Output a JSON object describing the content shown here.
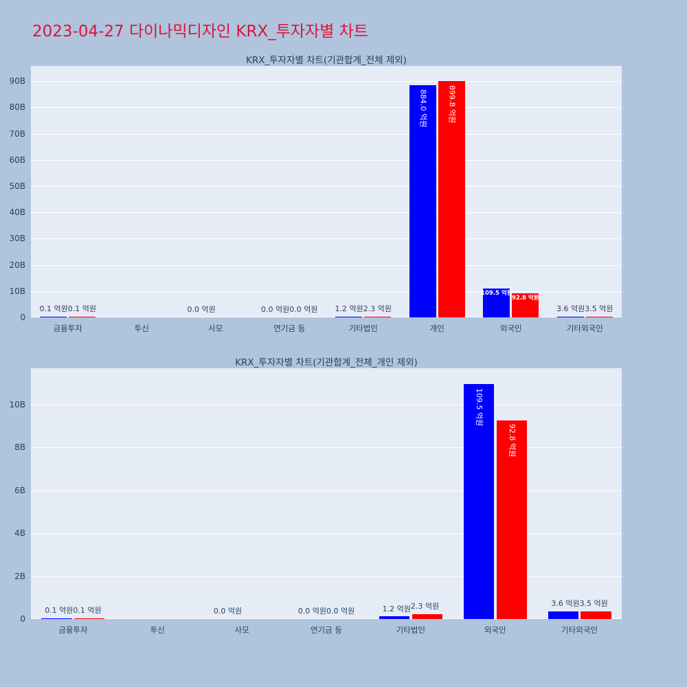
{
  "page_title": "2023-04-27 다이나믹디자인 KRX_투자자별 차트",
  "colors": {
    "page_background": "#b0c4de",
    "plot_background": "#e5ecf6",
    "title": "#dc143c",
    "text": "#2a3f5f",
    "grid": "#ffffff",
    "series_blue": "#0000ff",
    "series_red": "#ff0000"
  },
  "chart_data": [
    {
      "type": "bar",
      "title": "KRX_투자자별 차트(기관합계_전체 제외)",
      "xlabel": "",
      "ylabel": "",
      "legend_position": "none",
      "grid": "horizontal-white",
      "categories": [
        "금융투자",
        "투신",
        "사모",
        "연기금 등",
        "기타법인",
        "개인",
        "외국인",
        "기타외국인"
      ],
      "ymax_b": 95.8,
      "yticks": [
        {
          "value": 0,
          "label": "0"
        },
        {
          "value": 10,
          "label": "10B"
        },
        {
          "value": 20,
          "label": "20B"
        },
        {
          "value": 30,
          "label": "30B"
        },
        {
          "value": 40,
          "label": "40B"
        },
        {
          "value": 50,
          "label": "50B"
        },
        {
          "value": 60,
          "label": "60B"
        },
        {
          "value": 70,
          "label": "70B"
        },
        {
          "value": 80,
          "label": "80B"
        },
        {
          "value": 90,
          "label": "90B"
        }
      ],
      "series": [
        {
          "name": "blue",
          "color": "#0000ff",
          "values_b": [
            0.01,
            0,
            0,
            0,
            0.12,
            88.4,
            10.95,
            0.36
          ],
          "labels": [
            "0.1 억원",
            "",
            "0.0 억원",
            "0.0 억원",
            "1.2 억원",
            "884.0 억원",
            "109.5 억원",
            "3.6 억원"
          ],
          "label_pos": [
            "out",
            "out",
            "out",
            "out",
            "out",
            "in-v",
            "in-h",
            "out"
          ]
        },
        {
          "name": "red",
          "color": "#ff0000",
          "values_b": [
            0.01,
            0,
            0,
            0,
            0.23,
            89.98,
            9.28,
            0.35
          ],
          "labels": [
            "0.1 억원",
            "",
            "",
            "0.0 억원",
            "2.3 억원",
            "899.8 억원",
            "92.8 억원",
            "3.5 억원"
          ],
          "label_pos": [
            "out",
            "out",
            "out",
            "out",
            "out",
            "in-v",
            "in-h",
            "out"
          ]
        }
      ]
    },
    {
      "type": "bar",
      "title": "KRX_투자자별 차트(기관합계_전체_개인 제외)",
      "xlabel": "",
      "ylabel": "",
      "legend_position": "none",
      "grid": "horizontal-white",
      "categories": [
        "금융투자",
        "투신",
        "사모",
        "연기금 등",
        "기타법인",
        "외국인",
        "기타외국인"
      ],
      "ymax_b": 11.7,
      "yticks": [
        {
          "value": 0,
          "label": "0"
        },
        {
          "value": 2,
          "label": "2B"
        },
        {
          "value": 4,
          "label": "4B"
        },
        {
          "value": 6,
          "label": "6B"
        },
        {
          "value": 8,
          "label": "8B"
        },
        {
          "value": 10,
          "label": "10B"
        }
      ],
      "series": [
        {
          "name": "blue",
          "color": "#0000ff",
          "values_b": [
            0.01,
            0,
            0,
            0,
            0.12,
            10.95,
            0.36
          ],
          "labels": [
            "0.1 억원",
            "",
            "0.0 억원",
            "0.0 억원",
            "1.2 억원",
            "109.5 억원",
            "3.6 억원"
          ],
          "label_pos": [
            "out",
            "out",
            "out",
            "out",
            "out",
            "in-v",
            "out"
          ]
        },
        {
          "name": "red",
          "color": "#ff0000",
          "values_b": [
            0.01,
            0,
            0,
            0,
            0.23,
            9.28,
            0.35
          ],
          "labels": [
            "0.1 억원",
            "",
            "",
            "0.0 억원",
            "2.3 억원",
            "92.8 억원",
            "3.5 억원"
          ],
          "label_pos": [
            "out",
            "out",
            "out",
            "out",
            "out",
            "in-v",
            "out"
          ]
        }
      ]
    }
  ]
}
